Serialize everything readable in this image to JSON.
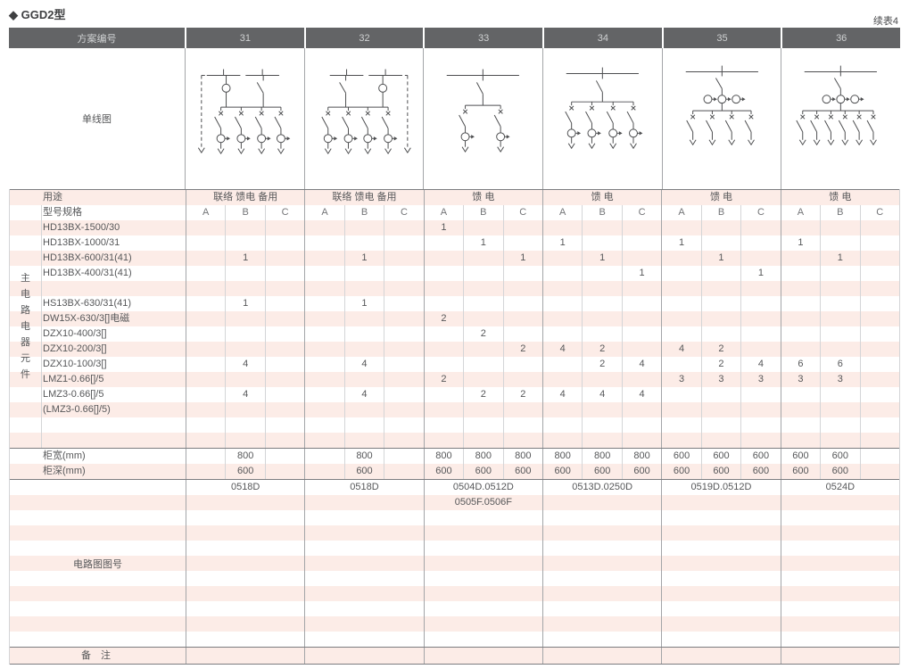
{
  "page": {
    "title": "◆ GGD2型",
    "continuation_note": "续表4"
  },
  "colors": {
    "header_bg": "#636466",
    "header_text": "#cfd1d2",
    "stripe": "#fcece7",
    "text": "#565759",
    "line_major": "#a3a5a8",
    "line_minor": "#d4d5d7",
    "line_section": "#7c7d80",
    "diagram_stroke": "#4d4e50"
  },
  "scheme_header": {
    "label": "方案编号",
    "schemes": [
      "31",
      "32",
      "33",
      "34",
      "35",
      "36"
    ]
  },
  "diagram_section": {
    "label": "单线图"
  },
  "usage_row": {
    "label": "用途",
    "values": [
      "联络 馈电 备用",
      "联络 馈电 备用",
      "馈 电",
      "馈 电",
      "馈 电",
      "馈 电"
    ]
  },
  "spec_header": {
    "label": "型号规格",
    "sub_columns": [
      "A",
      "B",
      "C"
    ]
  },
  "side_label": "主电路电器元件",
  "column_keys": [
    "31A",
    "31B",
    "31C",
    "32A",
    "32B",
    "32C",
    "33A",
    "33B",
    "33C",
    "34A",
    "34B",
    "34C",
    "35A",
    "35B",
    "35C",
    "36A",
    "36B",
    "36C"
  ],
  "components": [
    {
      "label": "HD13BX-1500/30",
      "values": [
        "",
        "",
        "",
        "",
        "",
        "",
        "1",
        "",
        "",
        "",
        "",
        "",
        "",
        "",
        "",
        "",
        "",
        ""
      ]
    },
    {
      "label": "HD13BX-1000/31",
      "values": [
        "",
        "",
        "",
        "",
        "",
        "",
        "",
        "1",
        "",
        "1",
        "",
        "",
        "1",
        "",
        "",
        "1",
        "",
        ""
      ]
    },
    {
      "label": "HD13BX-600/31(41)",
      "values": [
        "",
        "1",
        "",
        "",
        "1",
        "",
        "",
        "",
        "1",
        "",
        "1",
        "",
        "",
        "1",
        "",
        "",
        "1",
        ""
      ]
    },
    {
      "label": "HD13BX-400/31(41)",
      "values": [
        "",
        "",
        "",
        "",
        "",
        "",
        "",
        "",
        "",
        "",
        "",
        "1",
        "",
        "",
        "1",
        "",
        "",
        ""
      ]
    },
    {
      "label": "",
      "values": [
        "",
        "",
        "",
        "",
        "",
        "",
        "",
        "",
        "",
        "",
        "",
        "",
        "",
        "",
        "",
        "",
        "",
        ""
      ]
    },
    {
      "label": "HS13BX-630/31(41)",
      "values": [
        "",
        "1",
        "",
        "",
        "1",
        "",
        "",
        "",
        "",
        "",
        "",
        "",
        "",
        "",
        "",
        "",
        "",
        ""
      ]
    },
    {
      "label": "DW15X-630/3[]电磁",
      "values": [
        "",
        "",
        "",
        "",
        "",
        "",
        "2",
        "",
        "",
        "",
        "",
        "",
        "",
        "",
        "",
        "",
        "",
        ""
      ]
    },
    {
      "label": "DZX10-400/3[]",
      "values": [
        "",
        "",
        "",
        "",
        "",
        "",
        "",
        "2",
        "",
        "",
        "",
        "",
        "",
        "",
        "",
        "",
        "",
        ""
      ]
    },
    {
      "label": "DZX10-200/3[]",
      "values": [
        "",
        "",
        "",
        "",
        "",
        "",
        "",
        "",
        "2",
        "4",
        "2",
        "",
        "4",
        "2",
        "",
        "",
        "",
        ""
      ]
    },
    {
      "label": "DZX10-100/3[]",
      "values": [
        "",
        "4",
        "",
        "",
        "4",
        "",
        "",
        "",
        "",
        "",
        "2",
        "4",
        "",
        "2",
        "4",
        "6",
        "6",
        ""
      ]
    },
    {
      "label": "LMZ1-0.66[]/5",
      "values": [
        "",
        "",
        "",
        "",
        "",
        "",
        "2",
        "",
        "",
        "",
        "",
        "",
        "3",
        "3",
        "3",
        "3",
        "3",
        ""
      ]
    },
    {
      "label": "LMZ3-0.66[]/5",
      "values": [
        "",
        "4",
        "",
        "",
        "4",
        "",
        "",
        "2",
        "2",
        "4",
        "4",
        "4",
        "",
        "",
        "",
        "",
        "",
        ""
      ]
    },
    {
      "label": "(LMZ3-0.66[]/5)",
      "values": [
        "",
        "",
        "",
        "",
        "",
        "",
        "",
        "",
        "",
        "",
        "",
        "",
        "",
        "",
        "",
        "",
        "",
        ""
      ]
    },
    {
      "label": "",
      "values": [
        "",
        "",
        "",
        "",
        "",
        "",
        "",
        "",
        "",
        "",
        "",
        "",
        "",
        "",
        "",
        "",
        "",
        ""
      ]
    },
    {
      "label": "",
      "values": [
        "",
        "",
        "",
        "",
        "",
        "",
        "",
        "",
        "",
        "",
        "",
        "",
        "",
        "",
        "",
        "",
        "",
        ""
      ]
    }
  ],
  "dimension_rows": [
    {
      "label": "柜宽(mm)",
      "values": [
        "",
        "800",
        "",
        "",
        "800",
        "",
        "800",
        "800",
        "800",
        "800",
        "800",
        "800",
        "600",
        "600",
        "600",
        "600",
        "600",
        ""
      ]
    },
    {
      "label": "柜深(mm)",
      "values": [
        "",
        "600",
        "",
        "",
        "600",
        "",
        "600",
        "600",
        "600",
        "600",
        "600",
        "600",
        "600",
        "600",
        "600",
        "600",
        "600",
        ""
      ]
    }
  ],
  "figure_section": {
    "label": "电路图图号",
    "rows": [
      [
        "0518D",
        "0518D",
        "0504D.0512D",
        "0513D.0250D",
        "0519D.0512D",
        "0524D"
      ],
      [
        "",
        "",
        "0505F.0506F",
        "",
        "",
        ""
      ]
    ],
    "empty_row_count": 9
  },
  "remark_row": {
    "label": "备 注"
  }
}
